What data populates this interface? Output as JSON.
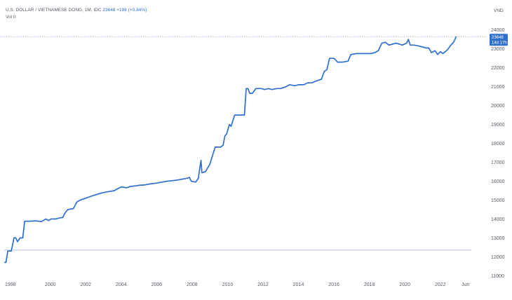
{
  "header": {
    "symbol": "U.S. DOLLAR / VIETNAMESE DONG, 1M, IDC",
    "last": "23648",
    "change": "+198 (+0.84%)",
    "volume_label": "Vol",
    "volume_value": "0"
  },
  "price_axis": {
    "unit": "VND",
    "last_tag": "23648",
    "countdown_tag": "14d 17h"
  },
  "colors": {
    "line": "#2f6fd0",
    "tag_bg": "#2f6fd0",
    "last_price_line": "#9aa7d8",
    "baseline": "#9aa7d8"
  },
  "chart_data": {
    "type": "line",
    "title": "U.S. DOLLAR / VIETNAMESE DONG, 1M, IDC",
    "ylabel": "VND",
    "xlabel": "",
    "ylim": [
      10900,
      24250
    ],
    "xlim": [
      1997.4,
      2023.75
    ],
    "y_ticks": [
      "11000",
      "12000",
      "13000",
      "14000",
      "15000",
      "16000",
      "17000",
      "18000",
      "19000",
      "20000",
      "21000",
      "22000",
      "23000",
      "24000"
    ],
    "x_ticks": [
      {
        "label": "1998",
        "x": 1997.75
      },
      {
        "label": "2000",
        "x": 2000.0
      },
      {
        "label": "2002",
        "x": 2002.0
      },
      {
        "label": "2004",
        "x": 2004.0
      },
      {
        "label": "2006",
        "x": 2006.0
      },
      {
        "label": "2008",
        "x": 2008.0
      },
      {
        "label": "2010",
        "x": 2010.0
      },
      {
        "label": "2012",
        "x": 2012.0
      },
      {
        "label": "2014",
        "x": 2014.0
      },
      {
        "label": "2016",
        "x": 2016.0
      },
      {
        "label": "2018",
        "x": 2018.0
      },
      {
        "label": "2020",
        "x": 2020.0
      },
      {
        "label": "2022",
        "x": 2022.0
      },
      {
        "label": "Jun",
        "x": 2023.42
      }
    ],
    "grid": false,
    "last_value": 23648,
    "baseline_value": 12350,
    "series": [
      {
        "values": [
          [
            1997.4,
            11700
          ],
          [
            1997.5,
            11700
          ],
          [
            1997.6,
            12300
          ],
          [
            1997.8,
            12300
          ],
          [
            1997.95,
            13000
          ],
          [
            1998.05,
            13000
          ],
          [
            1998.15,
            12800
          ],
          [
            1998.3,
            13000
          ],
          [
            1998.45,
            13000
          ],
          [
            1998.55,
            13880
          ],
          [
            1998.8,
            13880
          ],
          [
            1999.2,
            13900
          ],
          [
            1999.5,
            13860
          ],
          [
            1999.75,
            14000
          ],
          [
            1999.9,
            13920
          ],
          [
            2000.05,
            14000
          ],
          [
            2000.3,
            14000
          ],
          [
            2000.5,
            14050
          ],
          [
            2000.7,
            14080
          ],
          [
            2000.85,
            14350
          ],
          [
            2001.0,
            14500
          ],
          [
            2001.3,
            14550
          ],
          [
            2001.5,
            14900
          ],
          [
            2001.7,
            15000
          ],
          [
            2002.0,
            15100
          ],
          [
            2002.3,
            15200
          ],
          [
            2002.55,
            15280
          ],
          [
            2002.8,
            15350
          ],
          [
            2003.0,
            15400
          ],
          [
            2003.3,
            15450
          ],
          [
            2003.6,
            15500
          ],
          [
            2003.8,
            15600
          ],
          [
            2004.0,
            15700
          ],
          [
            2004.3,
            15650
          ],
          [
            2004.5,
            15720
          ],
          [
            2004.8,
            15750
          ],
          [
            2005.0,
            15780
          ],
          [
            2005.3,
            15800
          ],
          [
            2005.6,
            15850
          ],
          [
            2005.85,
            15880
          ],
          [
            2006.0,
            15900
          ],
          [
            2006.3,
            15950
          ],
          [
            2006.6,
            16000
          ],
          [
            2006.9,
            16030
          ],
          [
            2007.1,
            16050
          ],
          [
            2007.4,
            16100
          ],
          [
            2007.7,
            16150
          ],
          [
            2007.85,
            16200
          ],
          [
            2007.95,
            16000
          ],
          [
            2008.2,
            15950
          ],
          [
            2008.35,
            16150
          ],
          [
            2008.45,
            16800
          ],
          [
            2008.5,
            17100
          ],
          [
            2008.55,
            16450
          ],
          [
            2008.75,
            16500
          ],
          [
            2009.0,
            16900
          ],
          [
            2009.2,
            17500
          ],
          [
            2009.3,
            17800
          ],
          [
            2009.6,
            17800
          ],
          [
            2009.75,
            17900
          ],
          [
            2009.85,
            18400
          ],
          [
            2009.95,
            18500
          ],
          [
            2010.1,
            19000
          ],
          [
            2010.2,
            18900
          ],
          [
            2010.4,
            19500
          ],
          [
            2010.95,
            19500
          ],
          [
            2011.05,
            20900
          ],
          [
            2011.15,
            20900
          ],
          [
            2011.25,
            20650
          ],
          [
            2011.4,
            20650
          ],
          [
            2011.6,
            20900
          ],
          [
            2011.9,
            20900
          ],
          [
            2012.1,
            20850
          ],
          [
            2012.3,
            20900
          ],
          [
            2012.5,
            20850
          ],
          [
            2012.8,
            20900
          ],
          [
            2013.0,
            20900
          ],
          [
            2013.3,
            21000
          ],
          [
            2013.5,
            21100
          ],
          [
            2013.8,
            21050
          ],
          [
            2014.0,
            21100
          ],
          [
            2014.3,
            21100
          ],
          [
            2014.5,
            21200
          ],
          [
            2014.75,
            21200
          ],
          [
            2015.0,
            21300
          ],
          [
            2015.3,
            21400
          ],
          [
            2015.45,
            21800
          ],
          [
            2015.6,
            21900
          ],
          [
            2015.75,
            22500
          ],
          [
            2016.0,
            22500
          ],
          [
            2016.2,
            22300
          ],
          [
            2016.5,
            22300
          ],
          [
            2016.8,
            22350
          ],
          [
            2016.95,
            22700
          ],
          [
            2017.3,
            22750
          ],
          [
            2017.6,
            22750
          ],
          [
            2017.9,
            22750
          ],
          [
            2018.1,
            22750
          ],
          [
            2018.3,
            22800
          ],
          [
            2018.5,
            22900
          ],
          [
            2018.7,
            23300
          ],
          [
            2018.9,
            23350
          ],
          [
            2019.1,
            23200
          ],
          [
            2019.3,
            23250
          ],
          [
            2019.5,
            23300
          ],
          [
            2019.7,
            23250
          ],
          [
            2019.85,
            23200
          ],
          [
            2020.1,
            23300
          ],
          [
            2020.2,
            23500
          ],
          [
            2020.3,
            23200
          ],
          [
            2020.5,
            23200
          ],
          [
            2020.8,
            23150
          ],
          [
            2021.0,
            23100
          ],
          [
            2021.2,
            23050
          ],
          [
            2021.35,
            23050
          ],
          [
            2021.5,
            22800
          ],
          [
            2021.7,
            22900
          ],
          [
            2021.85,
            22700
          ],
          [
            2022.0,
            22850
          ],
          [
            2022.15,
            22750
          ],
          [
            2022.4,
            22950
          ],
          [
            2022.6,
            23200
          ],
          [
            2022.75,
            23350
          ],
          [
            2022.9,
            23648
          ]
        ]
      }
    ]
  }
}
